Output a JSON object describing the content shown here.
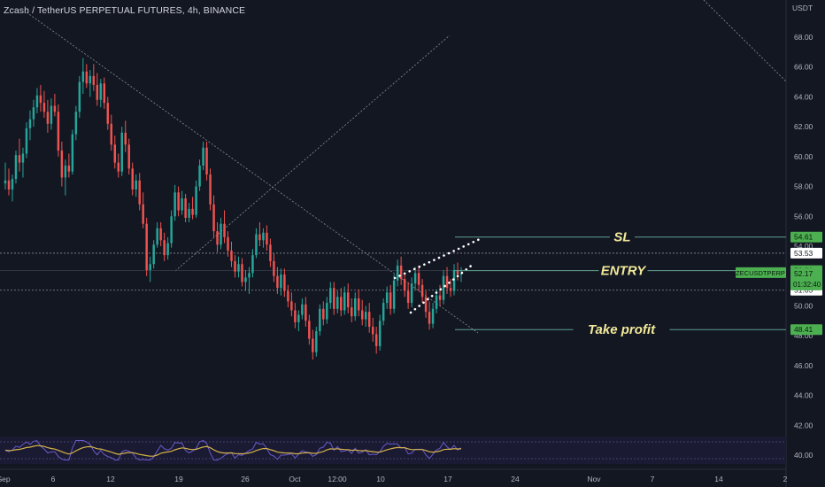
{
  "header": {
    "title": "Zcash / TetherUS PERPETUAL FUTURES, 4h, BINANCE",
    "currency": "USDT"
  },
  "chart_data": {
    "type": "candlestick",
    "symbol": "ZECUSDTPERP",
    "ylim": [
      39.5,
      69.5
    ],
    "y_ticks": [
      40,
      42,
      44,
      46,
      48,
      50,
      52,
      54,
      56,
      58,
      60,
      62,
      64,
      66,
      68
    ],
    "y_tick_labels": [
      "40.00",
      "42.00",
      "44.00",
      "46.00",
      "48.00",
      "50.00",
      "52.00",
      "54.00",
      "56.00",
      "58.00",
      "60.00",
      "62.00",
      "64.00",
      "66.00",
      "68.00"
    ],
    "x_ticks": [
      "Sep",
      "6",
      "12",
      "19",
      "26",
      "Oct",
      "12:00",
      "10",
      "17",
      "24",
      "Nov",
      "7",
      "14",
      "2"
    ],
    "price_labels": [
      {
        "value": 54.61,
        "label": "54.61",
        "style": "green"
      },
      {
        "value": 53.53,
        "label": "53.53",
        "style": "white"
      },
      {
        "value": 52.36,
        "label": "52.36",
        "style": "green"
      },
      {
        "value": 51.05,
        "label": "51.05",
        "style": "white"
      },
      {
        "value": 48.41,
        "label": "48.41",
        "style": "green"
      }
    ],
    "current_price": {
      "value": 52.17,
      "label": "52.17",
      "countdown": "01:32:40",
      "symbol_tag": "ZECUSDTPERP"
    },
    "levels": [
      {
        "name": "SL",
        "value": 54.61
      },
      {
        "name": "ENTRY",
        "value": 52.36
      },
      {
        "name": "Take profit",
        "value": 48.41
      }
    ],
    "annotations": [
      "SL",
      "ENTRY",
      "Take profit"
    ],
    "oscillator": {
      "panel": "bottom",
      "series": [
        "oscillator",
        "signal"
      ]
    },
    "colors": {
      "up": "#26a69a",
      "down": "#ef5350",
      "level": "#5d9e8c",
      "label_green": "#4caf50",
      "annotation": "#f2ea9a",
      "background": "#131722"
    },
    "candles_note": "",
    "ohlc": [
      [
        58.2,
        59.6,
        57.8,
        58.4
      ],
      [
        58.4,
        59.2,
        57.4,
        57.8
      ],
      [
        57.8,
        58.8,
        57.0,
        58.5
      ],
      [
        58.5,
        60.4,
        58.2,
        60.1
      ],
      [
        60.1,
        61.2,
        59.0,
        59.6
      ],
      [
        59.6,
        60.6,
        58.6,
        60.2
      ],
      [
        60.2,
        62.3,
        59.9,
        61.9
      ],
      [
        61.9,
        63.1,
        61.1,
        62.5
      ],
      [
        62.5,
        63.8,
        62.0,
        63.3
      ],
      [
        63.3,
        64.6,
        62.9,
        64.1
      ],
      [
        64.1,
        64.8,
        63.0,
        63.6
      ],
      [
        63.6,
        64.4,
        62.6,
        63.0
      ],
      [
        63.0,
        63.8,
        61.6,
        62.2
      ],
      [
        62.2,
        63.9,
        61.8,
        63.4
      ],
      [
        63.4,
        64.2,
        62.7,
        63.0
      ],
      [
        63.0,
        63.5,
        60.0,
        60.4
      ],
      [
        60.4,
        61.0,
        58.0,
        58.6
      ],
      [
        58.6,
        59.8,
        57.4,
        59.4
      ],
      [
        59.4,
        60.2,
        58.6,
        59.0
      ],
      [
        59.0,
        61.8,
        58.8,
        61.5
      ],
      [
        61.5,
        63.4,
        61.1,
        63.0
      ],
      [
        63.0,
        65.4,
        62.6,
        65.0
      ],
      [
        65.0,
        66.6,
        64.2,
        65.7
      ],
      [
        65.7,
        66.2,
        64.6,
        64.9
      ],
      [
        64.9,
        65.8,
        64.0,
        65.4
      ],
      [
        65.4,
        66.2,
        64.4,
        64.8
      ],
      [
        64.8,
        65.6,
        63.4,
        63.8
      ],
      [
        63.8,
        65.2,
        63.3,
        64.9
      ],
      [
        64.9,
        65.3,
        63.2,
        63.6
      ],
      [
        63.6,
        64.0,
        61.8,
        62.2
      ],
      [
        62.2,
        62.8,
        60.4,
        60.8
      ],
      [
        60.8,
        61.4,
        59.2,
        59.6
      ],
      [
        59.6,
        60.2,
        58.6,
        59.0
      ],
      [
        59.0,
        62.0,
        58.7,
        61.6
      ],
      [
        61.6,
        62.4,
        60.3,
        60.8
      ],
      [
        60.8,
        61.2,
        58.8,
        59.2
      ],
      [
        59.2,
        59.6,
        57.4,
        57.8
      ],
      [
        57.8,
        58.8,
        57.3,
        58.4
      ],
      [
        58.4,
        58.9,
        56.4,
        56.8
      ],
      [
        56.8,
        57.6,
        55.2,
        55.5
      ],
      [
        55.5,
        55.9,
        52.0,
        52.4
      ],
      [
        52.4,
        53.3,
        51.6,
        52.8
      ],
      [
        52.8,
        54.4,
        52.5,
        54.1
      ],
      [
        54.1,
        55.6,
        53.9,
        55.2
      ],
      [
        55.2,
        55.6,
        54.0,
        54.4
      ],
      [
        54.4,
        54.9,
        53.0,
        53.4
      ],
      [
        53.4,
        54.6,
        53.1,
        54.2
      ],
      [
        54.2,
        56.4,
        53.9,
        56.0
      ],
      [
        56.0,
        58.1,
        55.7,
        57.6
      ],
      [
        57.6,
        58.0,
        56.0,
        56.4
      ],
      [
        56.4,
        57.7,
        56.1,
        57.2
      ],
      [
        57.2,
        57.5,
        55.6,
        55.9
      ],
      [
        55.9,
        56.9,
        55.6,
        56.5
      ],
      [
        56.5,
        57.3,
        55.8,
        56.1
      ],
      [
        56.1,
        58.4,
        55.9,
        58.0
      ],
      [
        58.0,
        59.8,
        57.7,
        59.4
      ],
      [
        59.4,
        61.0,
        59.1,
        60.6
      ],
      [
        60.6,
        61.0,
        58.4,
        58.8
      ],
      [
        58.8,
        59.2,
        56.4,
        56.8
      ],
      [
        56.8,
        57.4,
        54.6,
        55.0
      ],
      [
        55.0,
        55.6,
        53.6,
        54.1
      ],
      [
        54.1,
        55.9,
        53.8,
        55.5
      ],
      [
        55.5,
        56.4,
        54.2,
        54.6
      ],
      [
        54.6,
        55.0,
        53.3,
        53.7
      ],
      [
        53.7,
        54.3,
        52.6,
        53.0
      ],
      [
        53.0,
        53.4,
        51.9,
        52.3
      ],
      [
        52.3,
        53.3,
        51.9,
        52.8
      ],
      [
        52.8,
        53.2,
        51.3,
        51.6
      ],
      [
        51.6,
        52.4,
        51.0,
        51.9
      ],
      [
        51.9,
        52.6,
        50.8,
        52.2
      ],
      [
        52.2,
        53.8,
        51.9,
        53.4
      ],
      [
        53.4,
        55.2,
        53.2,
        54.8
      ],
      [
        54.8,
        55.6,
        54.0,
        54.4
      ],
      [
        54.4,
        55.2,
        53.9,
        54.9
      ],
      [
        54.9,
        55.4,
        53.7,
        54.1
      ],
      [
        54.1,
        54.5,
        52.6,
        53.0
      ],
      [
        53.0,
        53.5,
        51.6,
        52.0
      ],
      [
        52.0,
        52.6,
        50.8,
        51.2
      ],
      [
        51.2,
        52.5,
        50.7,
        52.1
      ],
      [
        52.1,
        52.5,
        50.6,
        51.0
      ],
      [
        51.0,
        51.4,
        49.9,
        50.3
      ],
      [
        50.3,
        50.9,
        49.3,
        49.7
      ],
      [
        49.7,
        50.2,
        48.5,
        48.9
      ],
      [
        48.9,
        49.7,
        48.3,
        49.4
      ],
      [
        49.4,
        50.5,
        49.1,
        50.1
      ],
      [
        50.1,
        50.6,
        48.6,
        49.0
      ],
      [
        49.0,
        49.4,
        47.4,
        47.8
      ],
      [
        47.8,
        48.4,
        46.4,
        46.9
      ],
      [
        46.9,
        48.6,
        46.6,
        48.3
      ],
      [
        48.3,
        50.1,
        48.0,
        49.8
      ],
      [
        49.8,
        50.3,
        48.7,
        49.1
      ],
      [
        49.1,
        50.6,
        48.8,
        50.2
      ],
      [
        50.2,
        51.6,
        49.8,
        51.2
      ],
      [
        51.2,
        51.6,
        49.4,
        49.8
      ],
      [
        49.8,
        51.0,
        49.5,
        50.6
      ],
      [
        50.6,
        51.2,
        49.3,
        49.7
      ],
      [
        49.7,
        51.3,
        49.4,
        50.9
      ],
      [
        50.9,
        51.5,
        49.5,
        49.9
      ],
      [
        49.9,
        50.5,
        48.9,
        49.3
      ],
      [
        49.3,
        50.9,
        49.0,
        50.5
      ],
      [
        50.5,
        51.1,
        49.3,
        49.7
      ],
      [
        49.7,
        50.4,
        48.7,
        49.1
      ],
      [
        49.1,
        50.0,
        48.6,
        49.6
      ],
      [
        49.6,
        50.2,
        48.2,
        48.6
      ],
      [
        48.6,
        49.2,
        47.6,
        48.1
      ],
      [
        48.1,
        48.6,
        46.8,
        47.3
      ],
      [
        47.3,
        49.4,
        47.0,
        49.0
      ],
      [
        49.0,
        50.5,
        48.7,
        50.2
      ],
      [
        50.2,
        51.3,
        49.8,
        50.9
      ],
      [
        50.9,
        51.4,
        49.4,
        49.8
      ],
      [
        49.8,
        52.1,
        49.5,
        51.7
      ],
      [
        51.7,
        53.1,
        51.3,
        52.7
      ],
      [
        52.7,
        53.3,
        51.4,
        51.8
      ],
      [
        51.8,
        52.2,
        50.6,
        51.0
      ],
      [
        51.0,
        51.6,
        49.8,
        50.2
      ],
      [
        50.2,
        51.9,
        49.9,
        51.5
      ],
      [
        51.5,
        52.6,
        51.1,
        52.2
      ],
      [
        52.2,
        52.7,
        51.0,
        51.4
      ],
      [
        51.4,
        51.8,
        50.2,
        50.6
      ],
      [
        50.6,
        51.0,
        49.2,
        49.6
      ],
      [
        49.6,
        50.3,
        48.4,
        48.8
      ],
      [
        48.8,
        50.2,
        48.5,
        49.8
      ],
      [
        49.8,
        51.1,
        49.5,
        50.7
      ],
      [
        50.7,
        51.4,
        50.0,
        50.4
      ],
      [
        50.4,
        52.4,
        50.1,
        52.0
      ],
      [
        52.0,
        52.6,
        50.8,
        51.2
      ],
      [
        51.2,
        51.8,
        50.6,
        51.0
      ],
      [
        51.0,
        52.8,
        50.7,
        52.4
      ],
      [
        52.4,
        52.9,
        51.7,
        52.1
      ],
      [
        52.1,
        52.6,
        51.6,
        52.17
      ]
    ]
  }
}
